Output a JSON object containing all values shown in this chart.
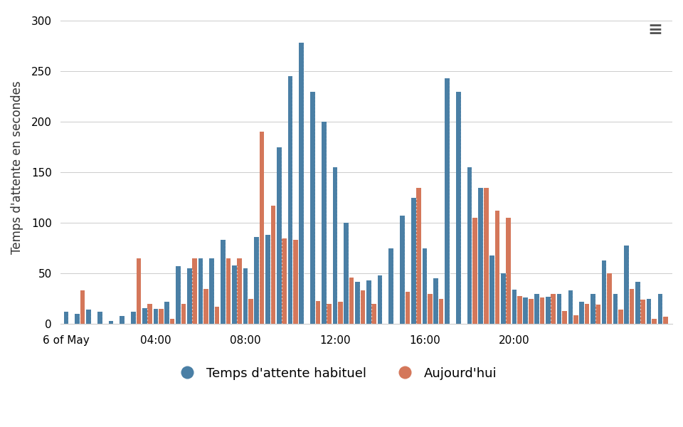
{
  "ylabel": "Temps d'attente en secondes",
  "background_color": "#ffffff",
  "bar_color_habituel": "#4a7fa5",
  "bar_color_aujourdhui": "#d4775a",
  "legend_label_1": "Temps d'attente habituel",
  "legend_label_2": "Aujourd'hui",
  "ylim": [
    0,
    310
  ],
  "yticks": [
    0,
    50,
    100,
    150,
    200,
    250,
    300
  ],
  "xtick_labels": [
    "6 of May",
    "04:00",
    "08:00",
    "12:00",
    "16:00",
    "20:00"
  ],
  "habituel": [
    12,
    10,
    14,
    12,
    3,
    8,
    12,
    16,
    15,
    22,
    57,
    55,
    65,
    65,
    83,
    58,
    55,
    86,
    88,
    175,
    245,
    278,
    230,
    200,
    155,
    100,
    42,
    43,
    48,
    75,
    107,
    125,
    75,
    45,
    243,
    230,
    155,
    135,
    68,
    50,
    34,
    26,
    30,
    27,
    30,
    33,
    22,
    30,
    63,
    30,
    78,
    42,
    25,
    30
  ],
  "aujourdhui": [
    0,
    33,
    0,
    0,
    0,
    0,
    65,
    20,
    15,
    5,
    20,
    65,
    35,
    17,
    65,
    65,
    25,
    190,
    117,
    85,
    83,
    0,
    23,
    20,
    22,
    46,
    33,
    20,
    0,
    0,
    32,
    135,
    30,
    25,
    0,
    0,
    105,
    135,
    112,
    105,
    28,
    25,
    26,
    30,
    13,
    9,
    20,
    19,
    50,
    14,
    35,
    24,
    5,
    7
  ],
  "n_bars": 54,
  "group_size": 4,
  "xtick_positions_groups": [
    0,
    8,
    16,
    24,
    32,
    40
  ]
}
